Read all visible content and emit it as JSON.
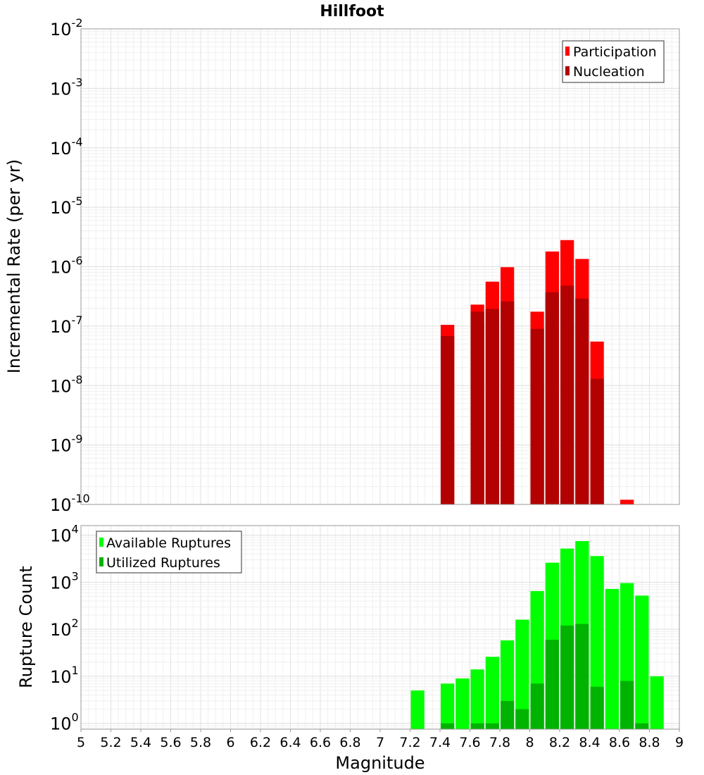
{
  "title": "Hillfoot",
  "xlabel": "Magnitude",
  "x_ticks": [
    "5",
    "5.2",
    "5.4",
    "5.6",
    "5.8",
    "6",
    "6.2",
    "6.4",
    "6.6",
    "6.8",
    "7",
    "7.2",
    "7.4",
    "7.6",
    "7.8",
    "8",
    "8.2",
    "8.4",
    "8.6",
    "8.8",
    "9"
  ],
  "chart_data": [
    {
      "type": "bar",
      "ylabel": "Incremental Rate (per yr)",
      "xlim": [
        5,
        9
      ],
      "ylim": [
        1e-10,
        0.01
      ],
      "yscale": "log",
      "y_ticks": [
        {
          "base": "10",
          "exp": "-2"
        },
        {
          "base": "10",
          "exp": "-3"
        },
        {
          "base": "10",
          "exp": "-4"
        },
        {
          "base": "10",
          "exp": "-5"
        },
        {
          "base": "10",
          "exp": "-6"
        },
        {
          "base": "10",
          "exp": "-7"
        },
        {
          "base": "10",
          "exp": "-8"
        },
        {
          "base": "10",
          "exp": "-9"
        },
        {
          "base": "10",
          "exp": "-10"
        }
      ],
      "grid": true,
      "legend_position": "top-right",
      "series": [
        {
          "name": "Participation",
          "color": "#ff0000",
          "x": [
            7.45,
            7.65,
            7.75,
            7.85,
            8.05,
            8.15,
            8.25,
            8.35,
            8.45,
            8.65
          ],
          "values": [
            1.05e-07,
            2.3e-07,
            5.6e-07,
            9.8e-07,
            1.75e-07,
            1.8e-06,
            2.8e-06,
            1.35e-06,
            5.5e-08,
            1.2e-10
          ]
        },
        {
          "name": "Nucleation",
          "color": "#b30000",
          "x": [
            7.45,
            7.65,
            7.75,
            7.85,
            8.05,
            8.15,
            8.25,
            8.35,
            8.45
          ],
          "values": [
            6.8e-08,
            1.75e-07,
            1.95e-07,
            2.6e-07,
            9e-08,
            3.7e-07,
            4.8e-07,
            2.9e-07,
            1.3e-08
          ]
        }
      ]
    },
    {
      "type": "bar",
      "ylabel": "Rupture Count",
      "xlim": [
        5,
        9
      ],
      "ylim": [
        0.75,
        16000
      ],
      "yscale": "log",
      "y_ticks": [
        {
          "base": "10",
          "exp": "4",
          "value": 10000
        },
        {
          "base": "10",
          "exp": "3",
          "value": 1000
        },
        {
          "base": "10",
          "exp": "2",
          "value": 100
        },
        {
          "base": "10",
          "exp": "1",
          "value": 10
        },
        {
          "base": "10",
          "exp": "0",
          "value": 1
        }
      ],
      "grid": true,
      "legend_position": "top-left",
      "series": [
        {
          "name": "Available Ruptures",
          "color": "#00ff00",
          "x": [
            7.25,
            7.45,
            7.55,
            7.65,
            7.75,
            7.85,
            7.95,
            8.05,
            8.15,
            8.25,
            8.35,
            8.45,
            8.55,
            8.65,
            8.75,
            8.85
          ],
          "values": [
            5,
            7,
            9,
            14,
            26,
            58,
            160,
            650,
            2600,
            5200,
            7500,
            3600,
            720,
            960,
            520,
            10
          ]
        },
        {
          "name": "Utilized Ruptures",
          "color": "#00b300",
          "x": [
            7.45,
            7.65,
            7.75,
            7.85,
            7.95,
            8.05,
            8.15,
            8.25,
            8.35,
            8.45,
            8.65,
            8.75
          ],
          "values": [
            1,
            1,
            1,
            3,
            2,
            7,
            60,
            120,
            130,
            6,
            8,
            1
          ]
        }
      ]
    }
  ]
}
